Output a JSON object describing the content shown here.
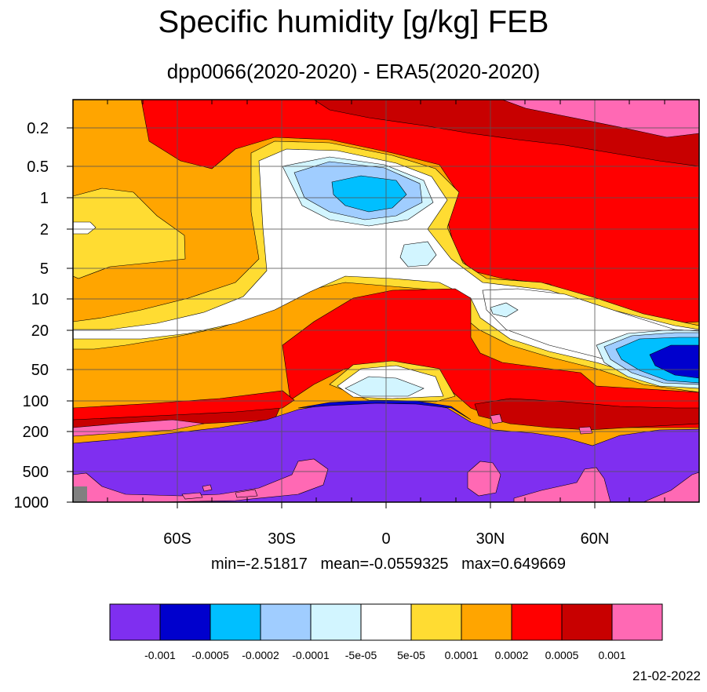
{
  "title": "Specific humidity [g/kg] FEB",
  "subtitle": "dpp0066(2020-2020) - ERA5(2020-2020)",
  "stats": {
    "min": "min=-2.51817",
    "mean": "mean=-0.0559325",
    "max": "max=0.649669"
  },
  "date": "21-02-2022",
  "colors": {
    "c_neg_max": "#7f2ff0",
    "c_neg_5e4": "#0000cd",
    "c_neg_2e4": "#00bfff",
    "c_neg_1e4": "#a0cdff",
    "c_neg_5e5": "#d2f5ff",
    "c_zero": "#ffffff",
    "c_pos_5e5": "#ffdc32",
    "c_pos_1e4": "#ffa500",
    "c_pos_2e4": "#ff0000",
    "c_pos_5e4": "#c80000",
    "c_pos_max": "#ff69b4",
    "missing": "#808080"
  },
  "chart_data": {
    "type": "heatmap",
    "x_axis": {
      "ticks": [
        "60S",
        "30S",
        "0",
        "30N",
        "60N"
      ],
      "range": [
        -90,
        90
      ]
    },
    "y_axis": {
      "ticks": [
        "0.2",
        "0.5",
        "1",
        "2",
        "5",
        "10",
        "20",
        "50",
        "100",
        "200",
        "500",
        "1000"
      ],
      "scale": "log",
      "reversed": true
    },
    "grid": true,
    "colorbar": {
      "labels": [
        "-0.001",
        "-0.0005",
        "-0.0002",
        "-0.0001",
        "-5e-05",
        "5e-05",
        "0.0001",
        "0.0002",
        "0.0005",
        "0.001"
      ],
      "colors": [
        "#7f2ff0",
        "#0000cd",
        "#00bfff",
        "#a0cdff",
        "#d2f5ff",
        "#ffffff",
        "#ffdc32",
        "#ffa500",
        "#ff0000",
        "#c80000",
        "#ff69b4"
      ]
    }
  }
}
